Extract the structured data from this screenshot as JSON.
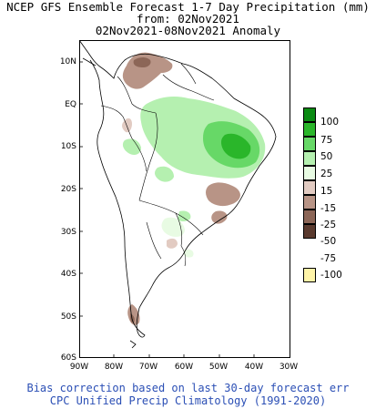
{
  "title": {
    "line1": "NCEP GFS Ensemble Forecast 1-7 Day Precipitation (mm)",
    "line2": "from: 02Nov2021",
    "line3": "02Nov2021-08Nov2021 Anomaly"
  },
  "axes": {
    "lat_labels": [
      "10N",
      "EQ",
      "10S",
      "20S",
      "30S",
      "40S",
      "50S",
      "60S"
    ],
    "lon_labels": [
      "90W",
      "80W",
      "70W",
      "60W",
      "50W",
      "40W",
      "30W"
    ]
  },
  "legend": {
    "items": [
      {
        "label": "100",
        "color": "#0a8a12"
      },
      {
        "label": "75",
        "color": "#2ab62a"
      },
      {
        "label": "50",
        "color": "#67d867"
      },
      {
        "label": "25",
        "color": "#b5f0b0"
      },
      {
        "label": "15",
        "color": "#e8fbe3"
      },
      {
        "label": "-15",
        "color": "#e2cbc2"
      },
      {
        "label": "-25",
        "color": "#b89486"
      },
      {
        "label": "-50",
        "color": "#8c6657"
      },
      {
        "label": "-75",
        "color": "#5a3a2e"
      },
      {
        "label": "-100",
        "color": "#fff4a8"
      }
    ]
  },
  "footer": {
    "line1": "Bias correction based on last 30-day forecast err",
    "line2": "CPC Unified Precip Climatology (1991-2020)"
  },
  "colors": {
    "footer_text": "#2b4fb5"
  }
}
